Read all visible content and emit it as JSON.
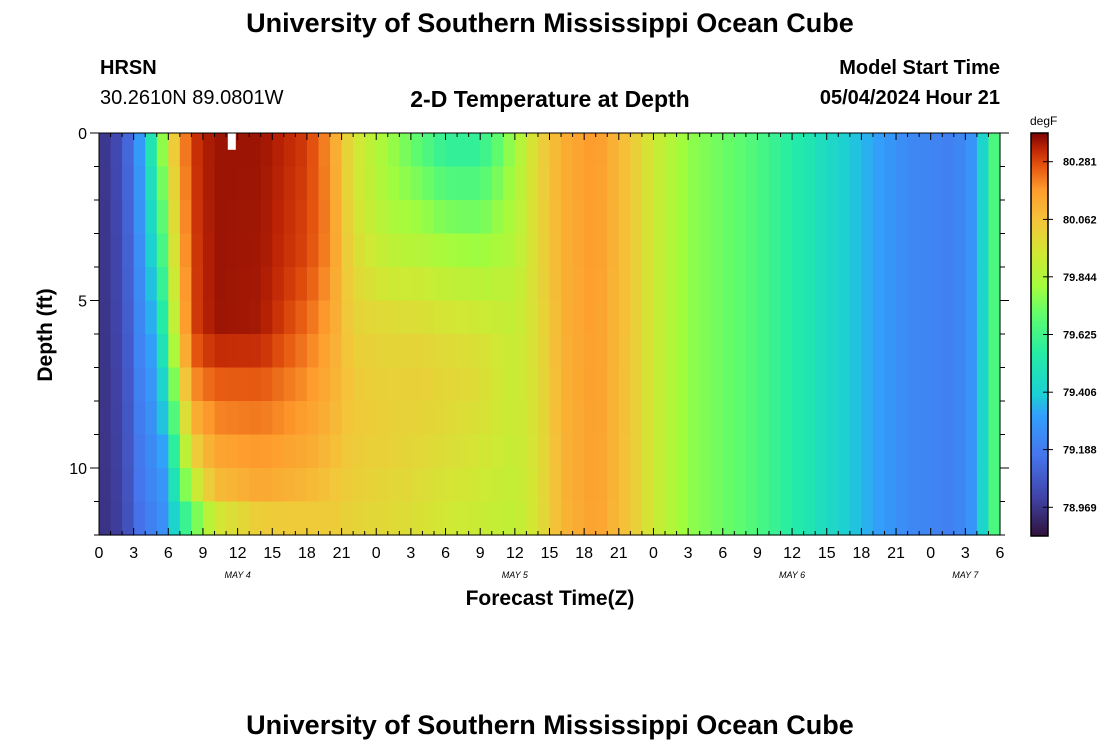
{
  "header": {
    "title_top": "University of Southern Mississippi Ocean Cube",
    "title_bottom": "University of Southern Mississippi Ocean Cube",
    "station": "HRSN",
    "coordinates": "30.2610N  89.0801W",
    "model_start_label": "Model Start Time",
    "model_start_value": "05/04/2024 Hour 21"
  },
  "chart_data": {
    "type": "heatmap",
    "title": "2-D Temperature at Depth",
    "xlabel": "Forecast Time(Z)",
    "ylabel": "Depth (ft)",
    "units": "degF",
    "x_range_hours": [
      0,
      78
    ],
    "y_range_ft": [
      0,
      12
    ],
    "x_step_hours": 1,
    "y_step_ft": 1,
    "x_tick_labels": [
      "0",
      "3",
      "6",
      "9",
      "12",
      "15",
      "18",
      "21",
      "0",
      "3",
      "6",
      "9",
      "12",
      "15",
      "18",
      "21",
      "0",
      "3",
      "6",
      "9",
      "12",
      "15",
      "18",
      "21",
      "0",
      "3",
      "6"
    ],
    "day_labels": [
      {
        "label": "MAY 4",
        "hour": 12
      },
      {
        "label": "MAY 5",
        "hour": 36
      },
      {
        "label": "MAY 6",
        "hour": 60
      },
      {
        "label": "MAY 7",
        "hour": 75
      }
    ],
    "y_tick_labels": [
      {
        "value": 0,
        "label": "0"
      },
      {
        "value": 5,
        "label": "5"
      },
      {
        "value": 10,
        "label": "10"
      }
    ],
    "colorbar": {
      "min": 78.86,
      "max": 80.39,
      "tick_values": [
        80.281,
        80.062,
        79.844,
        79.625,
        79.406,
        79.188,
        78.969
      ],
      "tick_labels": [
        "80.281",
        "80.062",
        "79.844",
        "79.625",
        "79.406",
        "79.188",
        "78.969"
      ]
    },
    "missing_cell": {
      "hour": 11.5,
      "depth_range_ft": [
        0,
        0.5
      ]
    },
    "profile_keyframes": [
      {
        "hour": 0,
        "depths": [
          0,
          12
        ],
        "values": [
          78.95,
          78.95
        ]
      },
      {
        "hour": 2,
        "depths": [
          0,
          12
        ],
        "values": [
          79.05,
          79.0
        ]
      },
      {
        "hour": 3,
        "depths": [
          0,
          12
        ],
        "values": [
          79.2,
          79.1
        ]
      },
      {
        "hour": 4,
        "depths": [
          0,
          12
        ],
        "values": [
          79.4,
          79.2
        ]
      },
      {
        "hour": 5,
        "depths": [
          0,
          7,
          12
        ],
        "values": [
          79.65,
          79.3,
          79.2
        ]
      },
      {
        "hour": 6,
        "depths": [
          0,
          6,
          10,
          12
        ],
        "values": [
          79.95,
          79.7,
          79.35,
          79.3
        ]
      },
      {
        "hour": 7,
        "depths": [
          0,
          6,
          9,
          11,
          12
        ],
        "values": [
          80.15,
          80.05,
          79.8,
          79.6,
          79.45
        ]
      },
      {
        "hour": 8,
        "depths": [
          0,
          6,
          8,
          10,
          12
        ],
        "values": [
          80.3,
          80.28,
          80.15,
          79.95,
          79.6
        ]
      },
      {
        "hour": 10,
        "depths": [
          0,
          6,
          7,
          9,
          11,
          12
        ],
        "values": [
          80.36,
          80.36,
          80.28,
          80.18,
          80.05,
          79.8
        ]
      },
      {
        "hour": 14,
        "depths": [
          0,
          6,
          7,
          9,
          11,
          12
        ],
        "values": [
          80.36,
          80.35,
          80.28,
          80.2,
          80.12,
          79.95
        ]
      },
      {
        "hour": 18,
        "depths": [
          0,
          4,
          7,
          9,
          11,
          12
        ],
        "values": [
          80.3,
          80.28,
          80.2,
          80.15,
          80.08,
          80.0
        ]
      },
      {
        "hour": 20,
        "depths": [
          0,
          3,
          6,
          9,
          12
        ],
        "values": [
          80.18,
          80.2,
          80.15,
          80.1,
          80.02
        ]
      },
      {
        "hour": 22,
        "depths": [
          0,
          2,
          5,
          8,
          12
        ],
        "values": [
          79.95,
          79.95,
          80.0,
          80.05,
          80.0
        ]
      },
      {
        "hour": 25,
        "depths": [
          0,
          2,
          4,
          6,
          9,
          12
        ],
        "values": [
          79.8,
          79.82,
          79.9,
          80.0,
          80.02,
          79.98
        ]
      },
      {
        "hour": 28,
        "depths": [
          0,
          1,
          3,
          5,
          7,
          9,
          12
        ],
        "values": [
          79.65,
          79.7,
          79.82,
          79.95,
          80.02,
          80.0,
          79.95
        ]
      },
      {
        "hour": 30,
        "depths": [
          0,
          1,
          3,
          5,
          7,
          9,
          12
        ],
        "values": [
          79.55,
          79.62,
          79.78,
          79.92,
          80.0,
          79.98,
          79.92
        ]
      },
      {
        "hour": 33,
        "depths": [
          0,
          1,
          3,
          5,
          7,
          9,
          12
        ],
        "values": [
          79.55,
          79.62,
          79.76,
          79.9,
          79.98,
          79.95,
          79.9
        ]
      },
      {
        "hour": 36,
        "depths": [
          0,
          3,
          6,
          9,
          12
        ],
        "values": [
          79.8,
          79.85,
          79.9,
          79.9,
          79.88
        ]
      },
      {
        "hour": 38,
        "depths": [
          0,
          12
        ],
        "values": [
          80.0,
          79.95
        ]
      },
      {
        "hour": 40,
        "depths": [
          0,
          12
        ],
        "values": [
          80.12,
          80.1
        ]
      },
      {
        "hour": 43,
        "depths": [
          0,
          12
        ],
        "values": [
          80.18,
          80.16
        ]
      },
      {
        "hour": 46,
        "depths": [
          0,
          12
        ],
        "values": [
          80.05,
          80.05
        ]
      },
      {
        "hour": 48,
        "depths": [
          0,
          12
        ],
        "values": [
          79.92,
          79.92
        ]
      },
      {
        "hour": 51,
        "depths": [
          0,
          12
        ],
        "values": [
          79.78,
          79.78
        ]
      },
      {
        "hour": 56,
        "depths": [
          0,
          12
        ],
        "values": [
          79.68,
          79.68
        ]
      },
      {
        "hour": 61,
        "depths": [
          0,
          12
        ],
        "values": [
          79.52,
          79.52
        ]
      },
      {
        "hour": 66,
        "depths": [
          0,
          12
        ],
        "values": [
          79.36,
          79.36
        ]
      },
      {
        "hour": 70,
        "depths": [
          0,
          12
        ],
        "values": [
          79.24,
          79.24
        ]
      },
      {
        "hour": 74,
        "depths": [
          0,
          12
        ],
        "values": [
          79.2,
          79.2
        ]
      },
      {
        "hour": 76,
        "depths": [
          0,
          12
        ],
        "values": [
          79.3,
          79.3
        ]
      },
      {
        "hour": 77,
        "depths": [
          0,
          12
        ],
        "values": [
          79.55,
          79.55
        ]
      },
      {
        "hour": 78,
        "depths": [
          0,
          12
        ],
        "values": [
          79.75,
          79.75
        ]
      }
    ]
  }
}
